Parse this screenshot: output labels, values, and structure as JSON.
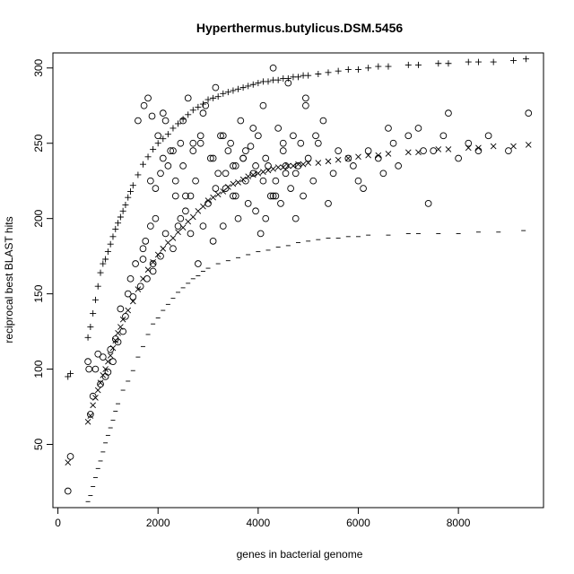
{
  "chart_data": {
    "type": "scatter",
    "title": "Hyperthermus.butylicus.DSM.5456",
    "xlabel": "genes in bacterial genome",
    "ylabel": "reciprocal best BLAST hits",
    "xlim": [
      -100,
      9700
    ],
    "ylim": [
      8,
      310
    ],
    "xticks": [
      0,
      2000,
      4000,
      6000,
      8000
    ],
    "yticks": [
      50,
      100,
      150,
      200,
      250,
      300
    ],
    "grid": false,
    "legend": "none",
    "series": [
      {
        "marker": "plus",
        "x": [
          200,
          250,
          600,
          650,
          700,
          750,
          800,
          850,
          900,
          950,
          1000,
          1050,
          1100,
          1150,
          1200,
          1250,
          1300,
          1350,
          1400,
          1450,
          1500,
          1600,
          1700,
          1800,
          1900,
          2000,
          2100,
          2200,
          2300,
          2400,
          2500,
          2600,
          2700,
          2800,
          2900,
          3000,
          3100,
          3200,
          3300,
          3400,
          3500,
          3600,
          3700,
          3800,
          3900,
          4000,
          4100,
          4200,
          4300,
          4400,
          4500,
          4600,
          4700,
          4800,
          4900,
          5000,
          5200,
          5400,
          5600,
          5800,
          6000,
          6200,
          6400,
          6600,
          7000,
          7200,
          7600,
          7800,
          8200,
          8400,
          8700,
          9100,
          9350
        ],
        "y": [
          95,
          97,
          121,
          128,
          137,
          146,
          155,
          164,
          170,
          173,
          178,
          183,
          188,
          193,
          197,
          201,
          205,
          209,
          214,
          218,
          222,
          229,
          236,
          241,
          246,
          250,
          253,
          256,
          260,
          263,
          266,
          269,
          272,
          274,
          276,
          279,
          280,
          281,
          283,
          284,
          285,
          286,
          287,
          288,
          289,
          290,
          291,
          291,
          292,
          292,
          293,
          293,
          294,
          294,
          295,
          295,
          296,
          297,
          298,
          299,
          299,
          300,
          301,
          301,
          302,
          302,
          303,
          303,
          304,
          304,
          304,
          305,
          306
        ]
      },
      {
        "marker": "cross",
        "x": [
          200,
          600,
          650,
          700,
          750,
          800,
          850,
          900,
          950,
          1000,
          1050,
          1100,
          1150,
          1200,
          1250,
          1300,
          1400,
          1500,
          1600,
          1700,
          1800,
          1900,
          2000,
          2100,
          2200,
          2300,
          2400,
          2500,
          2600,
          2700,
          2800,
          2900,
          3000,
          3100,
          3200,
          3300,
          3400,
          3500,
          3600,
          3700,
          3800,
          3900,
          4000,
          4100,
          4200,
          4300,
          4400,
          4500,
          4600,
          4700,
          4800,
          4900,
          5000,
          5200,
          5400,
          5600,
          5800,
          6000,
          6200,
          6400,
          6600,
          7000,
          7200,
          7600,
          7800,
          8200,
          8400,
          8700,
          9100,
          9400
        ],
        "y": [
          38,
          65,
          69,
          76,
          81,
          86,
          91,
          96,
          100,
          105,
          109,
          114,
          119,
          124,
          128,
          133,
          139,
          145,
          153,
          160,
          166,
          171,
          176,
          180,
          184,
          187,
          191,
          194,
          198,
          201,
          205,
          208,
          212,
          214,
          216,
          218,
          221,
          223,
          224,
          226,
          228,
          229,
          230,
          231,
          232,
          233,
          234,
          234,
          235,
          235,
          236,
          236,
          237,
          237,
          238,
          239,
          240,
          241,
          242,
          242,
          243,
          244,
          244,
          246,
          246,
          247,
          247,
          248,
          248,
          249
        ]
      },
      {
        "marker": "dash",
        "x": [
          600,
          650,
          700,
          750,
          800,
          850,
          900,
          950,
          1000,
          1050,
          1100,
          1150,
          1200,
          1300,
          1400,
          1500,
          1600,
          1700,
          1800,
          1900,
          2000,
          2100,
          2200,
          2300,
          2400,
          2500,
          2600,
          2700,
          2800,
          2900,
          3000,
          3200,
          3400,
          3600,
          3800,
          4000,
          4200,
          4400,
          4600,
          4800,
          5000,
          5200,
          5400,
          5600,
          5800,
          6000,
          6200,
          6600,
          7000,
          7200,
          7600,
          8000,
          8400,
          8800,
          9300
        ],
        "y": [
          12,
          16,
          22,
          28,
          34,
          39,
          45,
          51,
          56,
          61,
          66,
          72,
          77,
          86,
          92,
          99,
          108,
          115,
          123,
          130,
          134,
          139,
          143,
          147,
          151,
          154,
          157,
          160,
          162,
          165,
          167,
          170,
          172,
          174,
          176,
          178,
          179,
          181,
          182,
          184,
          185,
          186,
          187,
          187,
          188,
          188,
          189,
          189,
          190,
          190,
          190,
          190,
          191,
          191,
          192
        ]
      },
      {
        "marker": "circle",
        "x": [
          200,
          250,
          600,
          620,
          650,
          700,
          750,
          800,
          850,
          900,
          950,
          1000,
          1050,
          1100,
          1150,
          1200,
          1250,
          1300,
          1350,
          1400,
          1450,
          1500,
          1550,
          1600,
          1650,
          1700,
          1720,
          1750,
          1780,
          1800,
          1850,
          1880,
          1900,
          1950,
          2000,
          2050,
          2100,
          2150,
          2200,
          2250,
          2300,
          2350,
          2400,
          2450,
          2500,
          2550,
          2600,
          2650,
          2700,
          2750,
          2800,
          2850,
          2900,
          2950,
          3000,
          3050,
          3100,
          3150,
          3200,
          3250,
          3300,
          3350,
          3400,
          3450,
          3500,
          3550,
          3600,
          3650,
          3700,
          3750,
          3800,
          3850,
          3900,
          3950,
          4000,
          4050,
          4100,
          4150,
          4200,
          4250,
          4300,
          4350,
          4400,
          4450,
          4500,
          4550,
          4600,
          4650,
          4700,
          4750,
          4800,
          4850,
          4900,
          4950,
          5000,
          5100,
          5200,
          5300,
          5400,
          5500,
          5600,
          5800,
          5900,
          6000,
          6100,
          6200,
          6400,
          6500,
          6600,
          6700,
          6800,
          7000,
          7200,
          7300,
          7400,
          7500,
          7700,
          7800,
          8000,
          8200,
          8400,
          8600,
          9000,
          9400,
          1850,
          1950,
          2050,
          2150,
          2350,
          2450,
          2550,
          2650,
          2850,
          3150,
          3350,
          3550,
          3750,
          3950,
          4150,
          4350,
          4550,
          4750,
          4950,
          5150,
          1700,
          1900,
          2100,
          2300,
          2500,
          2700,
          2900,
          3100,
          3300,
          3500,
          3700,
          3900,
          4100,
          4300,
          4500
        ],
        "y": [
          19,
          42,
          105,
          100,
          70,
          82,
          100,
          110,
          90,
          108,
          95,
          98,
          113,
          105,
          120,
          118,
          140,
          125,
          135,
          150,
          160,
          148,
          170,
          265,
          155,
          180,
          275,
          185,
          160,
          280,
          195,
          268,
          165,
          200,
          255,
          175,
          270,
          190,
          235,
          245,
          180,
          215,
          195,
          250,
          265,
          205,
          280,
          190,
          245,
          225,
          170,
          250,
          195,
          275,
          210,
          240,
          185,
          287,
          230,
          255,
          195,
          220,
          245,
          250,
          215,
          235,
          200,
          265,
          240,
          225,
          210,
          248,
          230,
          205,
          255,
          190,
          275,
          240,
          235,
          215,
          300,
          225,
          260,
          210,
          245,
          230,
          290,
          220,
          255,
          200,
          235,
          250,
          215,
          275,
          240,
          225,
          250,
          265,
          210,
          230,
          245,
          240,
          235,
          225,
          220,
          245,
          240,
          230,
          260,
          250,
          235,
          255,
          260,
          245,
          210,
          245,
          255,
          270,
          240,
          250,
          245,
          255,
          245,
          270,
          225,
          220,
          230,
          265,
          225,
          200,
          215,
          215,
          255,
          220,
          230,
          215,
          245,
          235,
          200,
          215,
          235,
          230,
          280,
          255,
          173,
          170,
          240,
          245,
          235,
          250,
          270,
          240,
          255,
          235,
          240,
          260,
          225,
          215,
          250
        ]
      }
    ]
  }
}
